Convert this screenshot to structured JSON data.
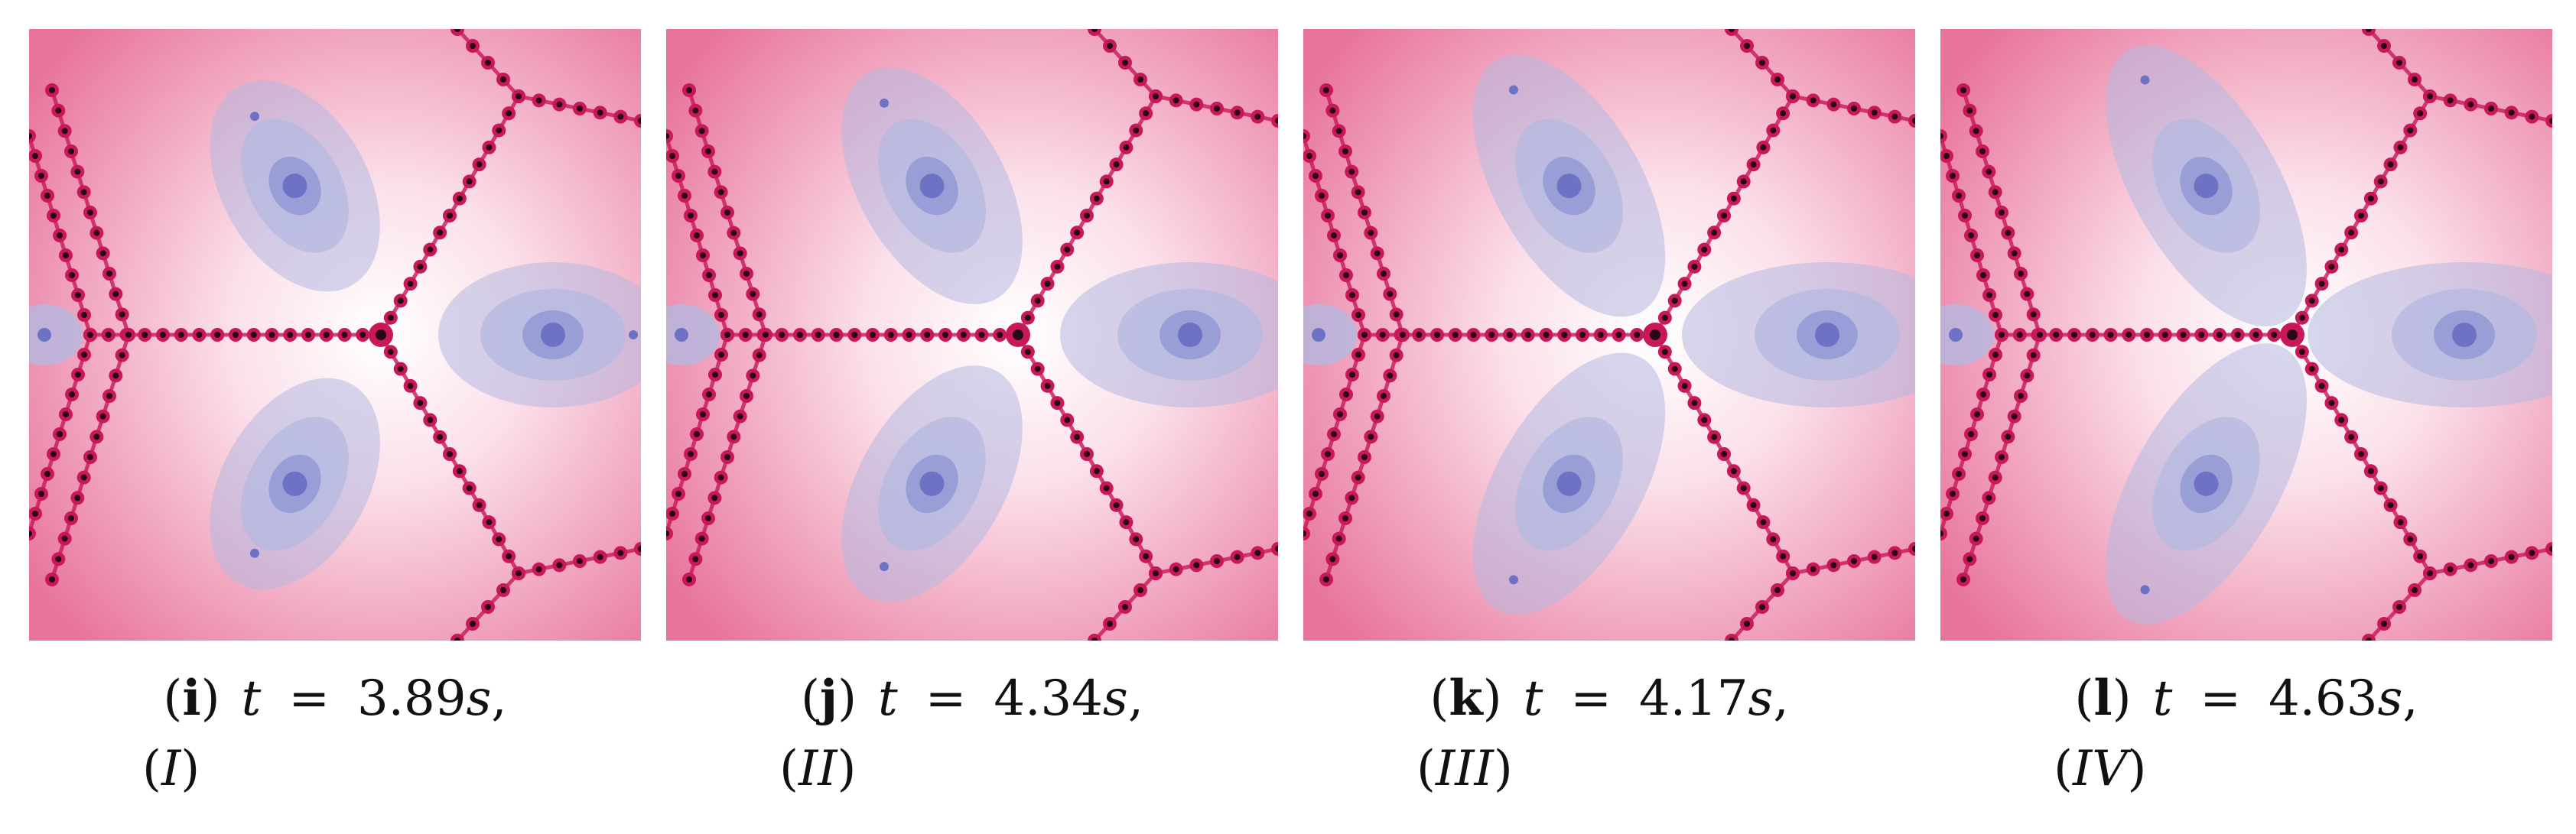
{
  "panels": [
    {
      "label": "i",
      "t_symbol": "t",
      "equals": "=",
      "value": "3.89",
      "unit": "s",
      "comma": ",",
      "case": "I",
      "colors": {
        "bg_outer": "#e8749b",
        "bg_inner": "#fbe0ea",
        "basin": "#b4b8e0",
        "basin_core": "#6d72c4",
        "julia": "#c8185a"
      }
    },
    {
      "label": "j",
      "t_symbol": "t",
      "equals": "=",
      "value": "4.34",
      "unit": "s",
      "comma": ",",
      "case": "II",
      "colors": {
        "bg_outer": "#e8749b",
        "bg_inner": "#fbe0ea",
        "basin": "#b4b8e0",
        "basin_core": "#6d72c4",
        "julia": "#c8185a"
      }
    },
    {
      "label": "k",
      "t_symbol": "t",
      "equals": "=",
      "value": "4.17",
      "unit": "s",
      "comma": ",",
      "case": "III",
      "colors": {
        "bg_outer": "#e8749b",
        "bg_inner": "#fbe0ea",
        "basin": "#b4b8e0",
        "basin_core": "#6d72c4",
        "julia": "#c8185a"
      }
    },
    {
      "label": "l",
      "t_symbol": "t",
      "equals": "=",
      "value": "4.63",
      "unit": "s",
      "comma": ",",
      "case": "IV",
      "colors": {
        "bg_outer": "#e8749b",
        "bg_inner": "#fbe0ea",
        "basin": "#b4b8e0",
        "basin_core": "#6d72c4",
        "julia": "#c8185a"
      }
    }
  ]
}
